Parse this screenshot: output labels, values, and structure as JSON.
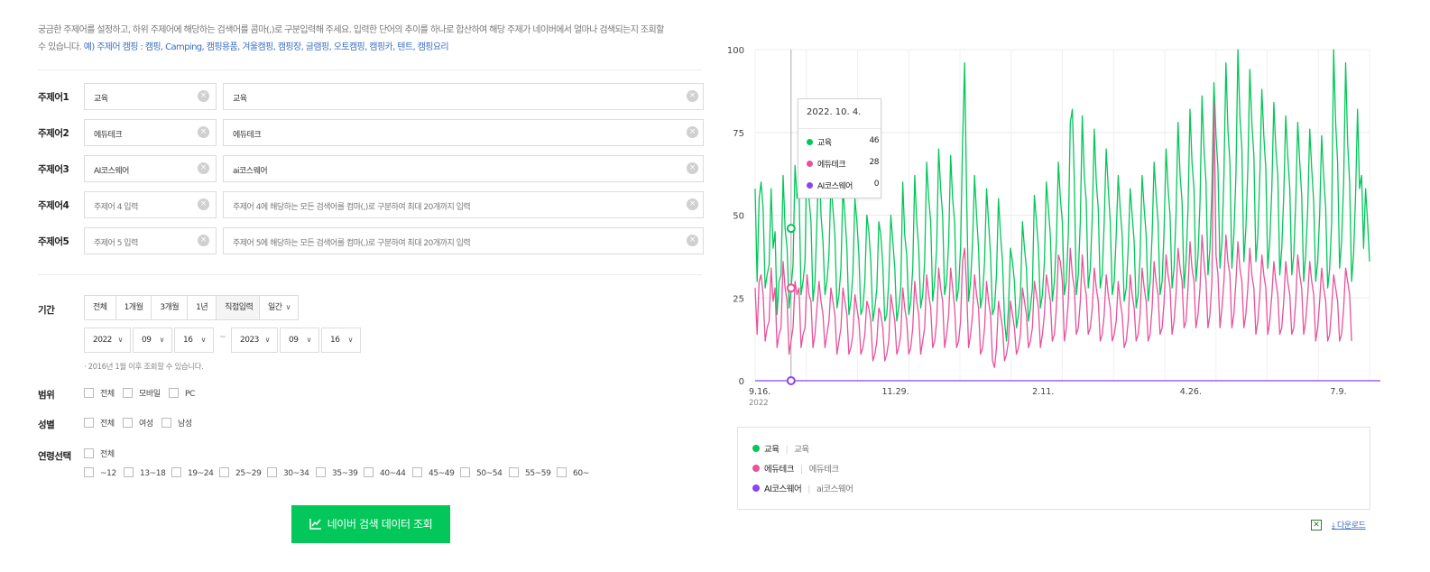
{
  "description": {
    "line1": "궁금한 주제어를 설정하고, 하위 주제어에 해당하는 검색어를 콤마(,)로 구분입력해 주세요. 입력한 단어의 추이를 하나로 합산하여 해당 주제가 네이버에서 얼마나 검색되는지 조회할",
    "line2_prefix": "수 있습니다. ",
    "line2_example": "예) 주제어 캠핑 : 캠핑, Camping, 캠핑용품, 겨울캠핑, 캠핑장, 글램핑, 오토캠핑, 캠핑카, 텐트, 캠핑요리"
  },
  "topics": [
    {
      "label": "주제어1",
      "name": "교육",
      "keywords": "교육",
      "name_placeholder": false,
      "keywords_placeholder": false
    },
    {
      "label": "주제어2",
      "name": "에듀테크",
      "keywords": "에듀테크",
      "name_placeholder": false,
      "keywords_placeholder": false
    },
    {
      "label": "주제어3",
      "name": "AI코스웨어",
      "keywords": "ai코스웨어",
      "name_placeholder": false,
      "keywords_placeholder": false
    },
    {
      "label": "주제어4",
      "name": "주제어 4 입력",
      "keywords": "주제어 4에 해당하는 모든 검색어를 컴마(,)로 구분하여 최대 20개까지 입력",
      "name_placeholder": true,
      "keywords_placeholder": true
    },
    {
      "label": "주제어5",
      "name": "주제어 5 입력",
      "keywords": "주제어 5에 해당하는 모든 검색어를 컴마(,)로 구분하여 최대 20개까지 입력",
      "name_placeholder": true,
      "keywords_placeholder": true
    }
  ],
  "period": {
    "label": "기간",
    "buttons": [
      "전체",
      "1개월",
      "3개월",
      "1년",
      "직접입력"
    ],
    "active_index": 4,
    "unit": "일간",
    "start": {
      "year": "2022",
      "month": "09",
      "day": "16"
    },
    "end": {
      "year": "2023",
      "month": "09",
      "day": "16"
    },
    "separator": "~",
    "note": "· 2016년 1월 이후 조회할 수 있습니다."
  },
  "device": {
    "label": "범위",
    "options": [
      "전체",
      "모바일",
      "PC"
    ]
  },
  "gender": {
    "label": "성별",
    "options": [
      "전체",
      "여성",
      "남성"
    ]
  },
  "age": {
    "label": "연령선택",
    "all": "전체",
    "options": [
      "~12",
      "13~18",
      "19~24",
      "25~29",
      "30~34",
      "35~39",
      "40~44",
      "45~49",
      "50~54",
      "55~59",
      "60~"
    ]
  },
  "search_button": "네이버 검색 데이터 조회",
  "tooltip": {
    "date": "2022. 10. 4.",
    "rows": [
      {
        "name": "교육",
        "value": "46"
      },
      {
        "name": "에듀테크",
        "value": "28"
      },
      {
        "name": "AI코스웨어",
        "value": "0"
      }
    ]
  },
  "legend": [
    {
      "name": "교육",
      "keywords": "교육"
    },
    {
      "name": "에듀테크",
      "keywords": "에듀테크"
    },
    {
      "name": "AI코스웨어",
      "keywords": "ai코스웨어"
    }
  ],
  "download_label": "다운로드",
  "excel_icon": "excel-icon",
  "colors": {
    "green": "#03c75a",
    "pink": "#e8529a",
    "purple": "#8b45f0",
    "link": "#3a6fc4"
  },
  "chart_data": {
    "type": "line",
    "ylim": [
      0,
      100
    ],
    "y_ticks": [
      "0",
      "25",
      "50",
      "75",
      "100"
    ],
    "x_ticks": [
      "9.16.",
      "11.29.",
      "2.11.",
      "4.26.",
      "7.9."
    ],
    "x_tick_sub": "2022",
    "x_start": "2022-09-16",
    "x_end": "2023-09-16",
    "grid": true,
    "series": [
      {
        "name": "교육",
        "color": "#03c75a",
        "values": [
          58,
          30,
          55,
          60,
          52,
          28,
          32,
          35,
          58,
          40,
          45,
          20,
          30,
          32,
          62,
          46,
          40,
          22,
          28,
          35,
          65,
          55,
          58,
          26,
          30,
          36,
          72,
          55,
          48,
          24,
          30,
          48,
          68,
          50,
          42,
          26,
          30,
          38,
          60,
          52,
          44,
          22,
          26,
          34,
          58,
          50,
          40,
          20,
          24,
          32,
          55,
          48,
          38,
          20,
          22,
          30,
          50,
          45,
          36,
          18,
          22,
          28,
          48,
          44,
          35,
          18,
          20,
          30,
          50,
          42,
          34,
          18,
          22,
          28,
          60,
          44,
          38,
          20,
          24,
          34,
          62,
          48,
          40,
          22,
          26,
          36,
          66,
          55,
          48,
          24,
          30,
          40,
          70,
          58,
          50,
          26,
          30,
          42,
          68,
          55,
          48,
          24,
          28,
          40,
          72,
          96,
          56,
          24,
          30,
          42,
          62,
          50,
          40,
          22,
          26,
          36,
          58,
          48,
          38,
          20,
          22,
          32,
          55,
          44,
          36,
          18,
          12,
          22,
          40,
          36,
          30,
          16,
          20,
          26,
          48,
          40,
          34,
          18,
          22,
          28,
          56,
          48,
          40,
          22,
          26,
          36,
          60,
          52,
          44,
          24,
          30,
          42,
          66,
          55,
          48,
          26,
          30,
          44,
          78,
          82,
          60,
          26,
          32,
          48,
          80,
          62,
          54,
          28,
          34,
          50,
          76,
          60,
          52,
          28,
          32,
          48,
          70,
          58,
          48,
          26,
          30,
          44,
          62,
          52,
          44,
          24,
          28,
          40,
          58,
          50,
          42,
          22,
          26,
          38,
          62,
          52,
          44,
          24,
          30,
          44,
          66,
          56,
          48,
          26,
          30,
          46,
          70,
          58,
          50,
          28,
          34,
          50,
          78,
          62,
          54,
          28,
          36,
          52,
          82,
          66,
          58,
          30,
          38,
          54,
          86,
          70,
          60,
          32,
          40,
          58,
          90,
          74,
          64,
          34,
          42,
          62,
          96,
          76,
          66,
          34,
          44,
          62,
          100,
          80,
          70,
          36,
          46,
          64,
          94,
          78,
          68,
          36,
          44,
          62,
          88,
          74,
          64,
          34,
          42,
          58,
          84,
          70,
          62,
          32,
          40,
          56,
          80,
          68,
          58,
          32,
          38,
          54,
          78,
          66,
          56,
          30,
          38,
          52,
          76,
          64,
          54,
          30,
          36,
          50,
          74,
          62,
          52,
          28,
          34,
          48,
          100,
          78,
          66,
          34,
          42,
          60,
          96,
          72,
          60,
          30,
          38,
          56,
          82,
          58,
          62,
          40,
          58,
          48,
          36
        ]
      },
      {
        "name": "에듀테크",
        "color": "#e8529a",
        "values": [
          28,
          14,
          30,
          32,
          26,
          12,
          16,
          18,
          34,
          24,
          28,
          10,
          14,
          16,
          36,
          28,
          24,
          8,
          12,
          16,
          30,
          26,
          28,
          10,
          14,
          16,
          32,
          26,
          24,
          10,
          14,
          22,
          30,
          24,
          20,
          10,
          14,
          18,
          28,
          24,
          20,
          8,
          12,
          16,
          28,
          24,
          20,
          8,
          10,
          14,
          26,
          22,
          18,
          8,
          10,
          14,
          24,
          22,
          18,
          6,
          8,
          12,
          22,
          20,
          16,
          6,
          8,
          12,
          26,
          22,
          18,
          8,
          10,
          14,
          28,
          22,
          18,
          8,
          10,
          16,
          30,
          24,
          20,
          8,
          12,
          16,
          32,
          26,
          22,
          10,
          12,
          18,
          34,
          28,
          24,
          10,
          14,
          20,
          34,
          28,
          22,
          10,
          12,
          18,
          36,
          40,
          28,
          10,
          14,
          20,
          32,
          26,
          22,
          8,
          10,
          16,
          30,
          24,
          20,
          6,
          4,
          10,
          24,
          20,
          16,
          6,
          8,
          12,
          24,
          20,
          16,
          8,
          10,
          14,
          28,
          24,
          20,
          10,
          12,
          16,
          30,
          26,
          22,
          10,
          14,
          20,
          32,
          28,
          24,
          12,
          14,
          22,
          38,
          36,
          30,
          12,
          16,
          24,
          40,
          32,
          28,
          14,
          16,
          24,
          38,
          30,
          26,
          14,
          16,
          22,
          34,
          28,
          24,
          12,
          14,
          20,
          32,
          26,
          22,
          12,
          14,
          18,
          30,
          24,
          20,
          10,
          12,
          18,
          32,
          26,
          22,
          12,
          14,
          20,
          34,
          28,
          24,
          12,
          14,
          22,
          36,
          30,
          26,
          14,
          16,
          24,
          38,
          32,
          28,
          14,
          18,
          26,
          40,
          34,
          30,
          16,
          18,
          28,
          42,
          34,
          30,
          16,
          20,
          28,
          44,
          36,
          30,
          16,
          20,
          30,
          84,
          38,
          32,
          16,
          22,
          30,
          44,
          36,
          32,
          16,
          20,
          30,
          42,
          34,
          30,
          16,
          20,
          28,
          40,
          32,
          28,
          14,
          18,
          26,
          38,
          32,
          28,
          14,
          18,
          26,
          36,
          30,
          26,
          14,
          16,
          24,
          36,
          30,
          26,
          14,
          16,
          24,
          38,
          32,
          28,
          14,
          18,
          26,
          36,
          30,
          26,
          12,
          16,
          24,
          34,
          28,
          24,
          12,
          14,
          22,
          32,
          28,
          24,
          12,
          14,
          22,
          34,
          30,
          26,
          12
        ]
      },
      {
        "name": "AI코스웨어",
        "color": "#8b45f0",
        "values": [
          0,
          0,
          0,
          0,
          0,
          0,
          0,
          0,
          0,
          0,
          0,
          0,
          0,
          0,
          0,
          0,
          0,
          0,
          0,
          0,
          0,
          0,
          0,
          0,
          0,
          0,
          0,
          0,
          0,
          0,
          0,
          0,
          0,
          0,
          0,
          0,
          0,
          0,
          0,
          0,
          0,
          0,
          0,
          0,
          0,
          0,
          0,
          0,
          0,
          0,
          0,
          0,
          0,
          0,
          0,
          0,
          0,
          0,
          0,
          0,
          0,
          0,
          0,
          0,
          0,
          0,
          0,
          0,
          0,
          0,
          0,
          0,
          0,
          0,
          0,
          0,
          0,
          0,
          0,
          0,
          0,
          0,
          0,
          0,
          0,
          0,
          0,
          0,
          0,
          0,
          0,
          0,
          0,
          0,
          0,
          0,
          0,
          0,
          0,
          0,
          0,
          0,
          0,
          0,
          0,
          0,
          0,
          0,
          0,
          0,
          0,
          0,
          0,
          0,
          0,
          0,
          0,
          0,
          0,
          0,
          0,
          0,
          0,
          0,
          0,
          0,
          0,
          0,
          0,
          0,
          0,
          0,
          0,
          0,
          0,
          0,
          0,
          0,
          0,
          0,
          0,
          0,
          0,
          0,
          0,
          0,
          0,
          0,
          0,
          0,
          0,
          0,
          0,
          0,
          0,
          0,
          0,
          0,
          0,
          0,
          0,
          0,
          0,
          0,
          0,
          0,
          0,
          0,
          0,
          0,
          0,
          0,
          0,
          0,
          0,
          0,
          0,
          0,
          0,
          0,
          0,
          0,
          0,
          0,
          0,
          0,
          0,
          0,
          0,
          0,
          0,
          0,
          0,
          0,
          0,
          0,
          0,
          0,
          0,
          0,
          0,
          0,
          0,
          0,
          0,
          0,
          0,
          0,
          0,
          0,
          0,
          0,
          0,
          0,
          0,
          0,
          0,
          0,
          0,
          0,
          0,
          0,
          0,
          0,
          0,
          0,
          0,
          0,
          0,
          0,
          0,
          0,
          0,
          0,
          0,
          0,
          0,
          0,
          0,
          0,
          0,
          0,
          0,
          0,
          0,
          0,
          0,
          0,
          0,
          0,
          0,
          0,
          0,
          0,
          0,
          0,
          0,
          0,
          0,
          0,
          0,
          0,
          0,
          0,
          0,
          0,
          0,
          0,
          0,
          0,
          0,
          0,
          0,
          0,
          0,
          0,
          0,
          0,
          0,
          0,
          0,
          0,
          0,
          0,
          0,
          0,
          0,
          0,
          0,
          0,
          0,
          0,
          0,
          0,
          0,
          0,
          0,
          0,
          0,
          0,
          0,
          0,
          0,
          0,
          0,
          0,
          0,
          0,
          0,
          0,
          0,
          0,
          0,
          0,
          0,
          0,
          0,
          0,
          0,
          0,
          0,
          0,
          0
        ]
      }
    ]
  }
}
